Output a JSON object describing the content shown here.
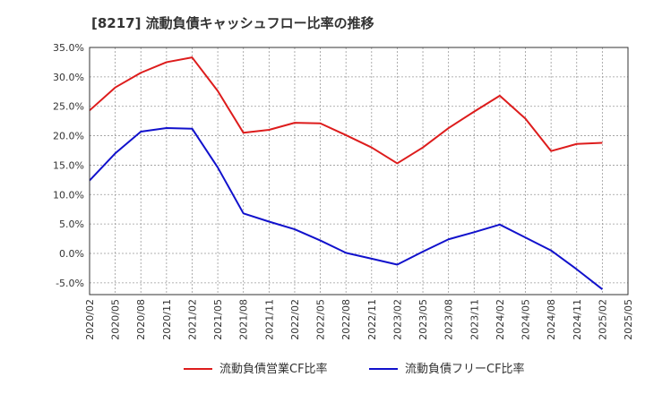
{
  "chart_data": {
    "type": "line",
    "title": "[8217]  流動負債キャッシュフロー比率の推移",
    "xlabel": "",
    "ylabel": "",
    "ylim": [
      -7,
      35
    ],
    "yticks": [
      35,
      30,
      25,
      20,
      15,
      10,
      5,
      0,
      -5
    ],
    "ytick_labels": [
      "35.0%",
      "30.0%",
      "25.0%",
      "20.0%",
      "15.0%",
      "10.0%",
      "5.0%",
      "0.0%",
      "-5.0%"
    ],
    "categories": [
      "2020/02",
      "2020/05",
      "2020/08",
      "2020/11",
      "2021/02",
      "2021/05",
      "2021/08",
      "2021/11",
      "2022/02",
      "2022/05",
      "2022/08",
      "2022/11",
      "2023/02",
      "2023/05",
      "2023/08",
      "2023/11",
      "2024/02",
      "2024/05",
      "2024/08",
      "2024/11",
      "2025/02",
      "2025/05"
    ],
    "grid": true,
    "legend_position": "bottom",
    "series": [
      {
        "name": "流動負債営業CF比率",
        "color": "#dd1c1c",
        "values": [
          24.3,
          28.2,
          30.7,
          32.5,
          33.3,
          27.6,
          20.5,
          21.0,
          22.2,
          22.1,
          20.1,
          18.0,
          15.3,
          18.0,
          21.3,
          24.1,
          26.8,
          22.9,
          17.4,
          18.6,
          18.8,
          null
        ]
      },
      {
        "name": "流動負債フリーCF比率",
        "color": "#1111cc",
        "values": [
          12.4,
          17.0,
          20.7,
          21.3,
          21.2,
          14.6,
          6.8,
          5.4,
          4.1,
          2.2,
          0.1,
          -0.9,
          -1.9,
          0.3,
          2.4,
          3.6,
          4.9,
          2.7,
          0.5,
          -2.7,
          -6.1,
          null
        ]
      }
    ]
  }
}
